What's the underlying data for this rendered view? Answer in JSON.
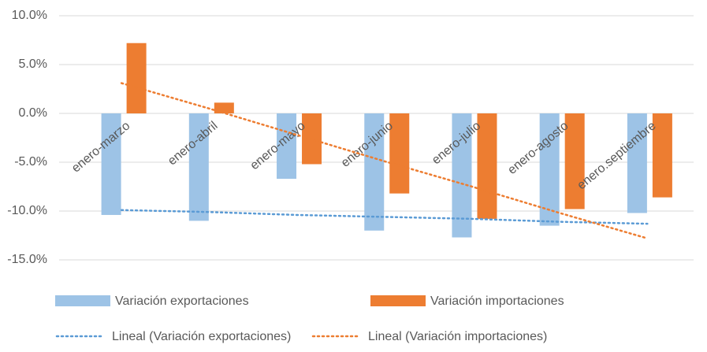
{
  "chart_data": {
    "type": "bar",
    "categories": [
      "enero-marzo",
      "enero-abril",
      "enero-mayo",
      "enero-junio",
      "enero-julio",
      "enero-agosto",
      "enero.septiembre"
    ],
    "series": [
      {
        "name": "Variación exportaciones",
        "color": "#9dc3e6",
        "values": [
          -10.4,
          -11.0,
          -6.7,
          -12.0,
          -12.7,
          -11.5,
          -10.2
        ]
      },
      {
        "name": "Variación importaciones",
        "color": "#ed7d31",
        "values": [
          7.2,
          1.1,
          -5.2,
          -8.2,
          -10.8,
          -9.8,
          -8.6
        ]
      }
    ],
    "trendlines": [
      {
        "name": "Lineal (Variación exportaciones)",
        "color": "#5b9bd5",
        "values": [
          -9.9,
          -10.1,
          -10.4,
          -10.6,
          -10.8,
          -11.1,
          -11.3
        ]
      },
      {
        "name": "Lineal (Variación importaciones)",
        "color": "#ed7d31",
        "values": [
          3.1,
          0.5,
          -2.2,
          -4.9,
          -7.5,
          -10.2,
          -12.8
        ]
      }
    ],
    "ylim": [
      -15,
      10
    ],
    "yticks": [
      {
        "value": -15,
        "label": "-15.0%"
      },
      {
        "value": -10,
        "label": "-10.0%"
      },
      {
        "value": -5,
        "label": "-5.0%"
      },
      {
        "value": 0,
        "label": "0.0%"
      },
      {
        "value": 5,
        "label": "5.0%"
      },
      {
        "value": 10,
        "label": "10.0%"
      }
    ],
    "grid": true
  }
}
